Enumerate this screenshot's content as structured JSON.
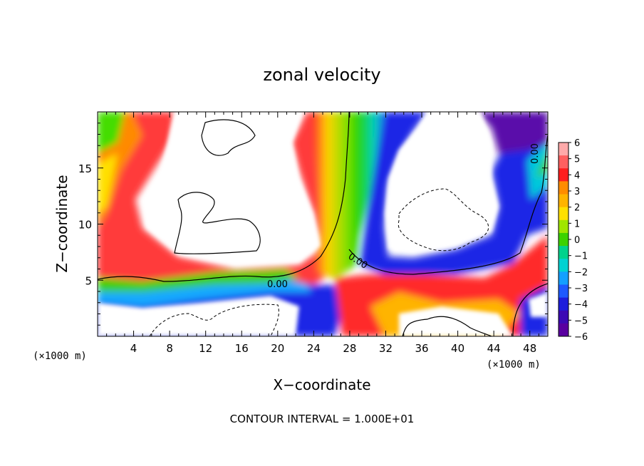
{
  "chart_data": {
    "type": "heatmap",
    "title": "zonal velocity",
    "xlabel": "X−coordinate",
    "ylabel": "Z−coordinate",
    "xunit": "(×1000 m)",
    "yunit": "(×1000 m)",
    "xlim": [
      0,
      50
    ],
    "ylim": [
      0,
      20
    ],
    "xticks": [
      4,
      8,
      12,
      16,
      20,
      24,
      28,
      32,
      36,
      40,
      44,
      48
    ],
    "yticks": [
      5,
      10,
      15
    ],
    "colorbar": {
      "ticks": [
        6,
        5,
        4,
        3,
        2,
        1,
        0,
        -1,
        -2,
        -3,
        -4,
        -5,
        -6
      ],
      "tick_labels": [
        "6",
        "5",
        "4",
        "3",
        "2",
        "1",
        "0",
        "−1",
        "−2",
        "−3",
        "−4",
        "−5",
        "−6"
      ],
      "range": [
        -6,
        6
      ]
    },
    "contour_label": "0.00",
    "footer": "CONTOUR INTERVAL = 1.000E+01"
  }
}
